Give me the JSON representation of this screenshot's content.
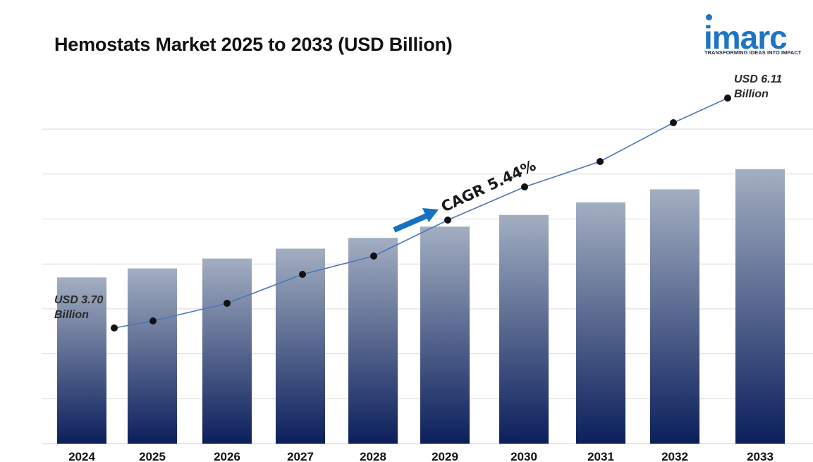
{
  "title": "Hemostats Market 2025 to 2033 (USD Billion)",
  "logo": {
    "word": "imarc",
    "tagline": "TRANSFORMING IDEAS INTO IMPACT",
    "color": "#1f74c4"
  },
  "annotations": {
    "start_line1": "USD 3.70",
    "start_line2": "Billion",
    "end_line1": "USD 6.11",
    "end_line2": "Billion",
    "cagr": "CAGR  5.44%"
  },
  "colors": {
    "bar_top": "#a3aec1",
    "bar_bottom": "#0b1f5c",
    "line": "#4a76b8",
    "marker": "#111111",
    "arrow": "#1572c2",
    "grid": "#d9d9d9"
  },
  "chart_data": {
    "type": "bar",
    "categories": [
      "2024",
      "2025",
      "2026",
      "2027",
      "2028",
      "2029",
      "2030",
      "2031",
      "2032",
      "2033"
    ],
    "values": [
      3.7,
      3.9,
      4.12,
      4.34,
      4.58,
      4.83,
      5.09,
      5.37,
      5.66,
      6.11
    ],
    "overlay_line": true,
    "title": "Hemostats Market 2025 to 2033 (USD Billion)",
    "xlabel": "",
    "ylabel": "",
    "grid": true,
    "ylim": [
      0,
      7
    ]
  }
}
